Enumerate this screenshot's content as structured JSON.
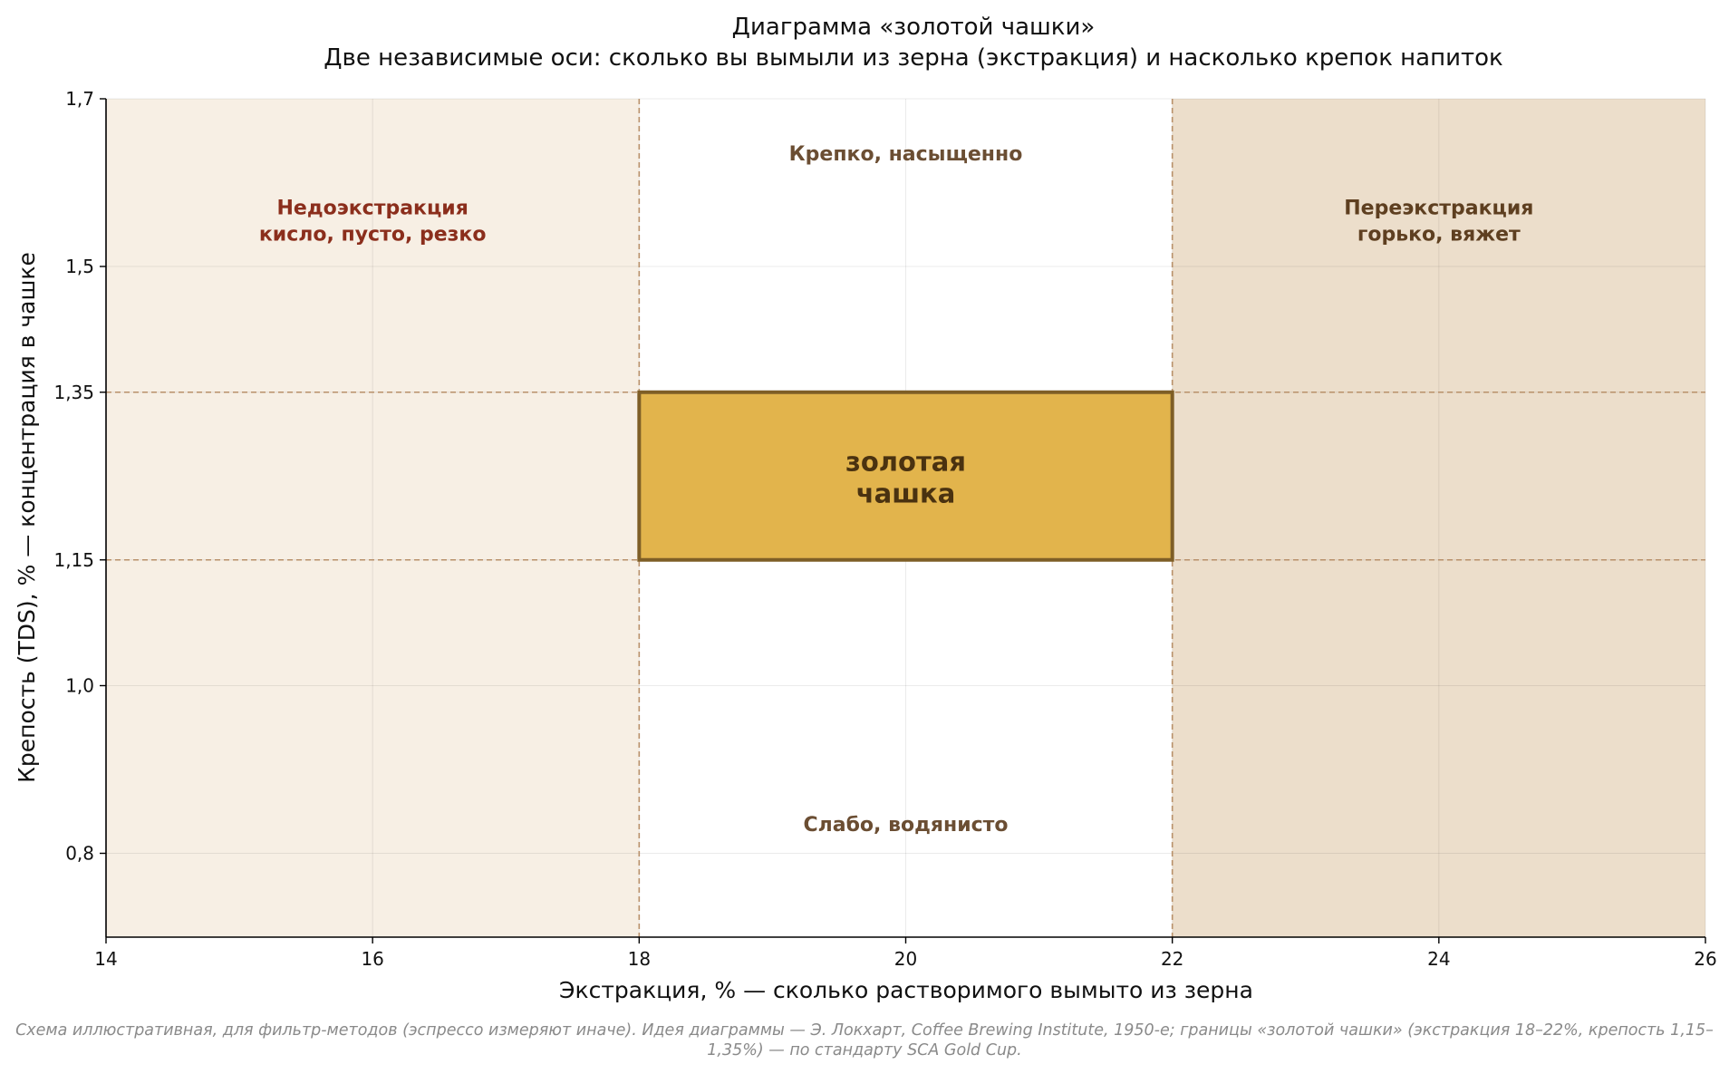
{
  "chart_data": {
    "type": "region-diagram",
    "title": "Диаграмма «золотой чашки»",
    "subtitle": "Две независимые оси: сколько вы вымыли из зерна (экстракция) и насколько крепок напиток",
    "xlabel": "Экстракция, %  —  сколько растворимого вымыто из зерна",
    "ylabel": "Крепость (TDS), %  —  концентрация в чашке",
    "xlim": [
      14,
      26
    ],
    "ylim": [
      0.7,
      1.7
    ],
    "x_ticks": [
      {
        "value": 14,
        "label": "14"
      },
      {
        "value": 16,
        "label": "16"
      },
      {
        "value": 18,
        "label": "18"
      },
      {
        "value": 20,
        "label": "20"
      },
      {
        "value": 22,
        "label": "22"
      },
      {
        "value": 24,
        "label": "24"
      },
      {
        "value": 26,
        "label": "26"
      }
    ],
    "y_ticks": [
      {
        "value": 0.8,
        "label": "0,8"
      },
      {
        "value": 1.0,
        "label": "1,0"
      },
      {
        "value": 1.15,
        "label": "1,15"
      },
      {
        "value": 1.35,
        "label": "1,35"
      },
      {
        "value": 1.5,
        "label": "1,5"
      },
      {
        "value": 1.7,
        "label": "1,7"
      }
    ],
    "grid": true,
    "zones": [
      {
        "key": "under",
        "x": [
          14,
          18
        ],
        "color": "#f7efe4",
        "label_lines": [
          "Недоэкстракция",
          "кисло, пусто, резко"
        ],
        "label_color": "#8b2e1c",
        "label_x": 16,
        "label_y": 1.555
      },
      {
        "key": "over",
        "x": [
          22,
          26
        ],
        "color": "#ecdecb",
        "label_lines": [
          "Переэкстракция",
          "горько, вяжет"
        ],
        "label_color": "#5e3f20",
        "label_x": 24,
        "label_y": 1.555
      }
    ],
    "gold_cup": {
      "x": [
        18,
        22
      ],
      "y": [
        1.15,
        1.35
      ],
      "fill": "#e2b44c",
      "stroke": "#7e5e26",
      "label_lines": [
        "золотая",
        "чашка"
      ]
    },
    "guides": {
      "x": [
        18,
        22
      ],
      "y": [
        1.15,
        1.35
      ],
      "color": "#b8906a"
    },
    "annotations": [
      {
        "text": "Крепко, насыщенно",
        "x": 20,
        "y": 1.635,
        "color": "#6b4e33"
      },
      {
        "text": "Слабо, водянисто",
        "x": 20,
        "y": 0.835,
        "color": "#6b4e33"
      }
    ]
  },
  "footnote": "Схема иллюстративная, для фильтр-методов (эспрессо измеряют иначе). Идея диаграммы — Э. Локхарт, Coffee Brewing Institute, 1950-е; границы «золотой чашки» (экстракция 18–22%, крепость 1,15–1,35%) — по стандарту SCA Gold Cup."
}
